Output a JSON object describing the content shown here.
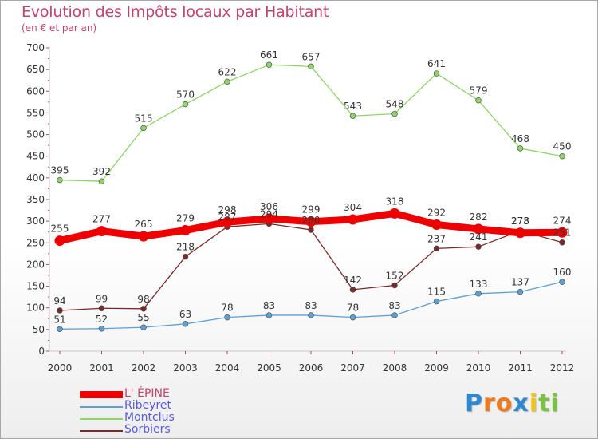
{
  "chart_data": {
    "type": "line",
    "title": "Evolution des Impôts locaux par Habitant",
    "subtitle": "(en € et par an)",
    "xlabel": "",
    "ylabel": "",
    "x": [
      "2000",
      "2001",
      "2002",
      "2003",
      "2004",
      "2005",
      "2006",
      "2007",
      "2008",
      "2009",
      "2010",
      "2011",
      "2012"
    ],
    "ylim": [
      0,
      700
    ],
    "yticks": [
      "0",
      "50",
      "100",
      "150",
      "200",
      "250",
      "300",
      "350",
      "400",
      "450",
      "500",
      "550",
      "600",
      "650",
      "700"
    ],
    "grid": false,
    "legend_position": "bottom-left",
    "series": [
      {
        "name": "L' ÉPINE",
        "color": "#ee0000",
        "values": [
          255,
          277,
          265,
          279,
          298,
          306,
          299,
          304,
          318,
          292,
          282,
          273,
          274
        ]
      },
      {
        "name": "Ribeyret",
        "color": "#5fa0d2",
        "values": [
          51,
          52,
          55,
          63,
          78,
          83,
          83,
          78,
          83,
          115,
          133,
          137,
          160
        ]
      },
      {
        "name": "Montclus",
        "color": "#8fd46a",
        "values": [
          395,
          392,
          515,
          570,
          622,
          661,
          657,
          543,
          548,
          641,
          579,
          468,
          450
        ]
      },
      {
        "name": "Sorbiers",
        "color": "#7a2a2a",
        "values": [
          94,
          99,
          98,
          218,
          287,
          294,
          280,
          142,
          152,
          237,
          241,
          278,
          251
        ]
      }
    ]
  },
  "brand": {
    "text": "Proxiti",
    "letters": [
      {
        "ch": "P",
        "color": "#2d8ad1"
      },
      {
        "ch": "r",
        "color": "#f07a1a"
      },
      {
        "ch": "o",
        "color": "#f07a1a"
      },
      {
        "ch": "x",
        "color": "#2d8ad1"
      },
      {
        "ch": "i",
        "color": "#f2c418"
      },
      {
        "ch": "t",
        "color": "#7cc242"
      },
      {
        "ch": "i",
        "color": "#7cc242"
      }
    ]
  }
}
